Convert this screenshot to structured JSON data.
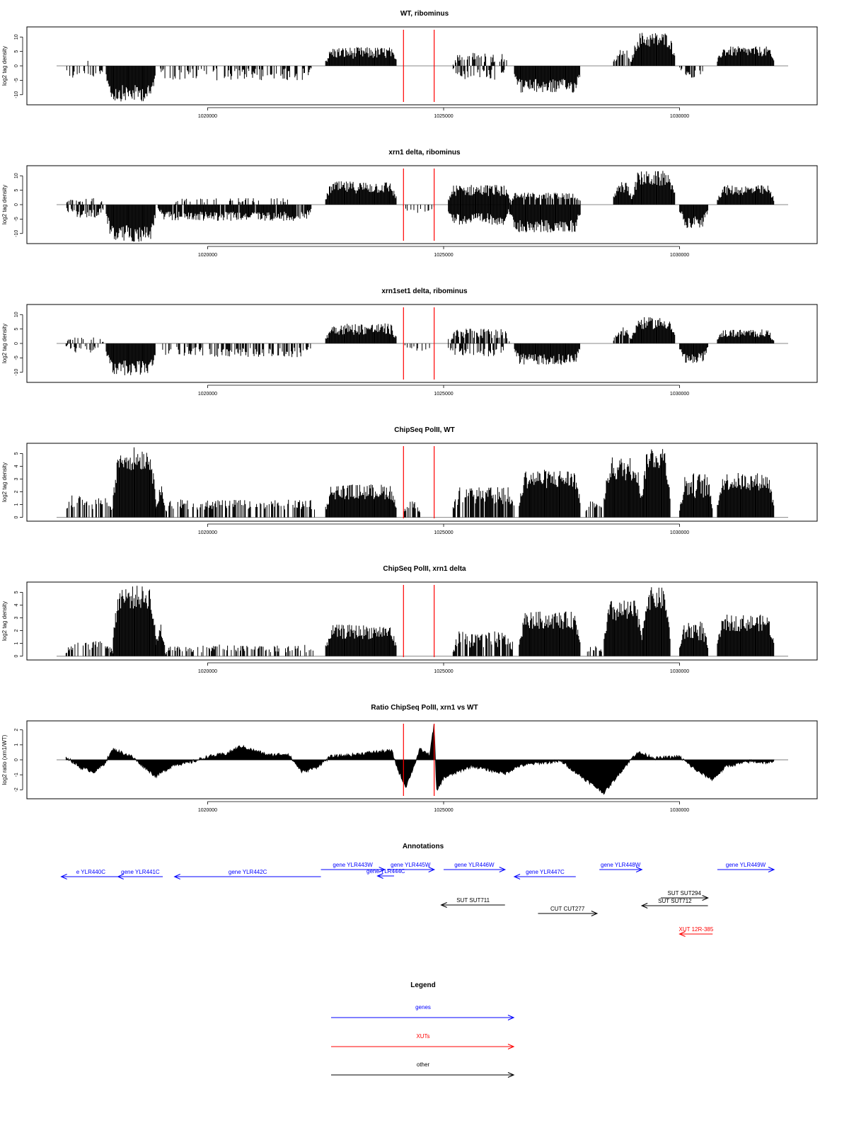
{
  "colors": {
    "genes": "#0000ff",
    "xuts": "#ff0000",
    "other": "#000000",
    "marker": "#ff0000",
    "bars": "#000000"
  },
  "chart_data": [
    {
      "type": "bar",
      "title": "WT, ribominus",
      "ylabel": "log2 tag density",
      "xlim": [
        1016800,
        1032300
      ],
      "ylim": [
        -13.5,
        13.5
      ],
      "yticks": [
        -10,
        -5,
        0,
        5,
        10
      ],
      "xticks": [
        1020000,
        1025000,
        1030000
      ],
      "xtick_labels": [
        "1020000",
        "1025000",
        "1030000"
      ],
      "markers": [
        1024150,
        1024800
      ],
      "segments": [
        {
          "from": 1017000,
          "to": 1017800,
          "level": -3,
          "density": 0.35,
          "noise": 0.6
        },
        {
          "from": 1017400,
          "to": 1017500,
          "level": 3,
          "density": 0.2,
          "noise": 0.4
        },
        {
          "from": 1017850,
          "to": 1018900,
          "level": -9.5,
          "density": 1,
          "noise": 0.3
        },
        {
          "from": 1019000,
          "to": 1022200,
          "level": -3,
          "density": 0.45,
          "noise": 0.7
        },
        {
          "from": 1022500,
          "to": 1024000,
          "level": 4.5,
          "density": 1,
          "noise": 0.45
        },
        {
          "from": 1025200,
          "to": 1026400,
          "level": 3,
          "density": 0.4,
          "noise": 0.6
        },
        {
          "from": 1025200,
          "to": 1026300,
          "level": -3,
          "density": 0.4,
          "noise": 0.6
        },
        {
          "from": 1026500,
          "to": 1027900,
          "level": -7,
          "density": 1,
          "noise": 0.35
        },
        {
          "from": 1028600,
          "to": 1029000,
          "level": 4,
          "density": 0.7,
          "noise": 0.4
        },
        {
          "from": 1029000,
          "to": 1029900,
          "level": 9,
          "density": 1,
          "noise": 0.3
        },
        {
          "from": 1030000,
          "to": 1030500,
          "level": -3,
          "density": 0.5,
          "noise": 0.5
        },
        {
          "from": 1030800,
          "to": 1032000,
          "level": 5,
          "density": 1,
          "noise": 0.35
        }
      ]
    },
    {
      "type": "bar",
      "title": "xrn1 delta, ribominus",
      "ylabel": "log2 tag density",
      "xlim": [
        1016800,
        1032300
      ],
      "ylim": [
        -13.5,
        13.5
      ],
      "yticks": [
        -10,
        -5,
        0,
        5,
        10
      ],
      "xticks": [
        1020000,
        1025000,
        1030000
      ],
      "xtick_labels": [
        "1020000",
        "1025000",
        "1030000"
      ],
      "markers": [
        1024150,
        1024800
      ],
      "segments": [
        {
          "from": 1017000,
          "to": 1017800,
          "level": -3,
          "density": 0.6,
          "noise": 0.5
        },
        {
          "from": 1017000,
          "to": 1017800,
          "level": 1.5,
          "density": 0.3,
          "noise": 0.5
        },
        {
          "from": 1017850,
          "to": 1018900,
          "level": -10,
          "density": 1,
          "noise": 0.3
        },
        {
          "from": 1018950,
          "to": 1022200,
          "level": -4,
          "density": 0.9,
          "noise": 0.4
        },
        {
          "from": 1019300,
          "to": 1021800,
          "level": 1.5,
          "density": 0.2,
          "noise": 0.5
        },
        {
          "from": 1022500,
          "to": 1024000,
          "level": 6,
          "density": 1,
          "noise": 0.35
        },
        {
          "from": 1024150,
          "to": 1024800,
          "level": -2,
          "density": 0.3,
          "noise": 0.5
        },
        {
          "from": 1025100,
          "to": 1026400,
          "level": 5,
          "density": 1,
          "noise": 0.4
        },
        {
          "from": 1025100,
          "to": 1026400,
          "level": -5,
          "density": 1,
          "noise": 0.4
        },
        {
          "from": 1026400,
          "to": 1027900,
          "level": 3,
          "density": 0.8,
          "noise": 0.4
        },
        {
          "from": 1026400,
          "to": 1027900,
          "level": -7.5,
          "density": 1,
          "noise": 0.3
        },
        {
          "from": 1028600,
          "to": 1029000,
          "level": 6,
          "density": 1,
          "noise": 0.35
        },
        {
          "from": 1029000,
          "to": 1029900,
          "level": 9,
          "density": 1,
          "noise": 0.3
        },
        {
          "from": 1030000,
          "to": 1030600,
          "level": -6,
          "density": 1,
          "noise": 0.35
        },
        {
          "from": 1030800,
          "to": 1032000,
          "level": 5,
          "density": 1,
          "noise": 0.35
        }
      ]
    },
    {
      "type": "bar",
      "title": "xrn1set1 delta, ribominus",
      "ylabel": "log2 tag density",
      "xlim": [
        1016800,
        1032300
      ],
      "ylim": [
        -13.5,
        13.5
      ],
      "yticks": [
        -10,
        -5,
        0,
        5,
        10
      ],
      "xticks": [
        1020000,
        1025000,
        1030000
      ],
      "xtick_labels": [
        "1020000",
        "1025000",
        "1030000"
      ],
      "markers": [
        1024150,
        1024800
      ],
      "segments": [
        {
          "from": 1017000,
          "to": 1017800,
          "level": -2,
          "density": 0.35,
          "noise": 0.6
        },
        {
          "from": 1017000,
          "to": 1017800,
          "level": 1.5,
          "density": 0.2,
          "noise": 0.5
        },
        {
          "from": 1017850,
          "to": 1018900,
          "level": -8.5,
          "density": 1,
          "noise": 0.3
        },
        {
          "from": 1019000,
          "to": 1022200,
          "level": -3,
          "density": 0.5,
          "noise": 0.6
        },
        {
          "from": 1022500,
          "to": 1024000,
          "level": 5,
          "density": 1,
          "noise": 0.4
        },
        {
          "from": 1024150,
          "to": 1024800,
          "level": -2,
          "density": 0.3,
          "noise": 0.5
        },
        {
          "from": 1025100,
          "to": 1026400,
          "level": 3.5,
          "density": 0.7,
          "noise": 0.5
        },
        {
          "from": 1025100,
          "to": 1026300,
          "level": -3,
          "density": 0.5,
          "noise": 0.5
        },
        {
          "from": 1026500,
          "to": 1027900,
          "level": -5.5,
          "density": 1,
          "noise": 0.35
        },
        {
          "from": 1028600,
          "to": 1029000,
          "level": 4,
          "density": 0.8,
          "noise": 0.4
        },
        {
          "from": 1029000,
          "to": 1029900,
          "level": 7,
          "density": 1,
          "noise": 0.3
        },
        {
          "from": 1030000,
          "to": 1030600,
          "level": -5,
          "density": 1,
          "noise": 0.35
        },
        {
          "from": 1030800,
          "to": 1032000,
          "level": 3.5,
          "density": 1,
          "noise": 0.4
        }
      ]
    },
    {
      "type": "bar",
      "title": "ChipSeq PolII, WT",
      "ylabel": "log2 tag density",
      "xlim": [
        1016800,
        1032300
      ],
      "ylim": [
        -0.3,
        5.8
      ],
      "yticks": [
        0,
        1,
        2,
        3,
        4,
        5
      ],
      "xticks": [
        1020000,
        1025000,
        1030000
      ],
      "xtick_labels": [
        "1020000",
        "1025000",
        "1030000"
      ],
      "markers": [
        1024150,
        1024800
      ],
      "segments": [
        {
          "from": 1017000,
          "to": 1018000,
          "level": 1.2,
          "density": 0.55,
          "noise": 0.45
        },
        {
          "from": 1018000,
          "to": 1018900,
          "level": 4.6,
          "density": 1,
          "noise": 0.2
        },
        {
          "from": 1018900,
          "to": 1019100,
          "level": 2.5,
          "density": 1,
          "noise": 0.3
        },
        {
          "from": 1019100,
          "to": 1022300,
          "level": 1,
          "density": 0.55,
          "noise": 0.4
        },
        {
          "from": 1022500,
          "to": 1024000,
          "level": 2,
          "density": 1,
          "noise": 0.3
        },
        {
          "from": 1024150,
          "to": 1024500,
          "level": 1,
          "density": 0.4,
          "noise": 0.3
        },
        {
          "from": 1025200,
          "to": 1026500,
          "level": 1.7,
          "density": 0.8,
          "noise": 0.4
        },
        {
          "from": 1026600,
          "to": 1027900,
          "level": 3,
          "density": 1,
          "noise": 0.25
        },
        {
          "from": 1028000,
          "to": 1028400,
          "level": 1,
          "density": 0.5,
          "noise": 0.3
        },
        {
          "from": 1028400,
          "to": 1029200,
          "level": 3.8,
          "density": 1,
          "noise": 0.25
        },
        {
          "from": 1029200,
          "to": 1029800,
          "level": 4.7,
          "density": 1,
          "noise": 0.2
        },
        {
          "from": 1030000,
          "to": 1030700,
          "level": 2.5,
          "density": 1,
          "noise": 0.4
        },
        {
          "from": 1030800,
          "to": 1032000,
          "level": 2.8,
          "density": 1,
          "noise": 0.25
        }
      ]
    },
    {
      "type": "bar",
      "title": "ChipSeq PolII, xrn1 delta",
      "ylabel": "log2 tag density",
      "xlim": [
        1016800,
        1032300
      ],
      "ylim": [
        -0.3,
        5.8
      ],
      "yticks": [
        0,
        1,
        2,
        3,
        4,
        5
      ],
      "xticks": [
        1020000,
        1025000,
        1030000
      ],
      "xtick_labels": [
        "1020000",
        "1025000",
        "1030000"
      ],
      "markers": [
        1024150,
        1024800
      ],
      "segments": [
        {
          "from": 1017000,
          "to": 1018000,
          "level": 0.8,
          "density": 0.5,
          "noise": 0.5
        },
        {
          "from": 1018000,
          "to": 1018900,
          "level": 4.6,
          "density": 1,
          "noise": 0.2
        },
        {
          "from": 1018900,
          "to": 1019100,
          "level": 2.5,
          "density": 1,
          "noise": 0.3
        },
        {
          "from": 1019100,
          "to": 1022300,
          "level": 0.6,
          "density": 0.45,
          "noise": 0.5
        },
        {
          "from": 1022500,
          "to": 1024000,
          "level": 1.9,
          "density": 1,
          "noise": 0.3
        },
        {
          "from": 1025200,
          "to": 1026500,
          "level": 1.3,
          "density": 0.8,
          "noise": 0.5
        },
        {
          "from": 1026600,
          "to": 1027900,
          "level": 2.8,
          "density": 1,
          "noise": 0.25
        },
        {
          "from": 1028000,
          "to": 1028400,
          "level": 0.6,
          "density": 0.4,
          "noise": 0.3
        },
        {
          "from": 1028400,
          "to": 1029200,
          "level": 3.5,
          "density": 1,
          "noise": 0.25
        },
        {
          "from": 1029200,
          "to": 1029800,
          "level": 4.5,
          "density": 1,
          "noise": 0.2
        },
        {
          "from": 1030000,
          "to": 1030600,
          "level": 2,
          "density": 1,
          "noise": 0.4
        },
        {
          "from": 1030800,
          "to": 1032000,
          "level": 2.6,
          "density": 1,
          "noise": 0.25
        }
      ]
    },
    {
      "type": "area",
      "title": "Ratio ChipSeq PolII, xrn1 vs WT",
      "ylabel": "log2 ratio (xrn1/WT)",
      "xlim": [
        1016800,
        1032300
      ],
      "ylim": [
        -2.6,
        2.6
      ],
      "yticks": [
        -2,
        -1,
        0,
        1,
        2
      ],
      "xticks": [
        1020000,
        1025000,
        1030000
      ],
      "xtick_labels": [
        "1020000",
        "1025000",
        "1030000"
      ],
      "markers": [
        1024150,
        1024800
      ],
      "x": [
        1017000,
        1017300,
        1017600,
        1017800,
        1018000,
        1018400,
        1018900,
        1019300,
        1019600,
        1020000,
        1020400,
        1020700,
        1021000,
        1021300,
        1021700,
        1022000,
        1022300,
        1022600,
        1023000,
        1023500,
        1023900,
        1024050,
        1024200,
        1024350,
        1024500,
        1024700,
        1024800,
        1024850,
        1025000,
        1025300,
        1025600,
        1026000,
        1026300,
        1026600,
        1027000,
        1027500,
        1028000,
        1028400,
        1028800,
        1029100,
        1029500,
        1030000,
        1030400,
        1030700,
        1031000,
        1031500,
        1032000
      ],
      "y": [
        0.2,
        -0.5,
        -0.8,
        -0.3,
        0.7,
        0.2,
        -1.1,
        -0.3,
        -0.2,
        0.2,
        0.4,
        0.9,
        0.6,
        0.3,
        0.4,
        -0.8,
        -0.5,
        0.2,
        0.3,
        0.5,
        0.6,
        -0.8,
        -1.8,
        -0.6,
        0.7,
        0.3,
        2.4,
        -2.1,
        -1.2,
        -0.8,
        -0.4,
        -0.7,
        -0.9,
        -0.4,
        -0.2,
        -0.1,
        -1.3,
        -2.2,
        -0.6,
        0.5,
        0.1,
        0.2,
        -0.8,
        -1.3,
        -0.4,
        -0.1,
        -0.2
      ]
    }
  ],
  "annotations": {
    "title": "Annotations",
    "items": [
      {
        "label": "e YLR440C",
        "type": "gene",
        "start": 1016900,
        "end": 1018150,
        "direction": "reverse",
        "row": 0
      },
      {
        "label": "gene YLR441C",
        "type": "gene",
        "start": 1018100,
        "end": 1019050,
        "direction": "reverse",
        "row": 0
      },
      {
        "label": "gene YLR442C",
        "type": "gene",
        "start": 1019300,
        "end": 1022400,
        "direction": "reverse",
        "row": 0
      },
      {
        "label": "gene YLR443W",
        "type": "gene",
        "start": 1022400,
        "end": 1023750,
        "direction": "forward",
        "row": 1
      },
      {
        "label": "gene YLR444C",
        "type": "gene",
        "start": 1023600,
        "end": 1023950,
        "direction": "reverse",
        "row": 2
      },
      {
        "label": "gene YLR445W",
        "type": "gene",
        "start": 1023800,
        "end": 1024800,
        "direction": "forward",
        "row": 1
      },
      {
        "label": "gene YLR446W",
        "type": "gene",
        "start": 1025000,
        "end": 1026300,
        "direction": "forward",
        "row": 1
      },
      {
        "label": "gene YLR447C",
        "type": "gene",
        "start": 1026500,
        "end": 1027800,
        "direction": "reverse",
        "row": 0
      },
      {
        "label": "gene YLR448W",
        "type": "gene",
        "start": 1028300,
        "end": 1029200,
        "direction": "forward",
        "row": 1
      },
      {
        "label": "gene YLR449W",
        "type": "gene",
        "start": 1030800,
        "end": 1032000,
        "direction": "forward",
        "row": 1
      },
      {
        "label": "SUT SUT711",
        "type": "other",
        "start": 1024950,
        "end": 1026300,
        "direction": "reverse",
        "row": 3
      },
      {
        "label": "CUT CUT277",
        "type": "other",
        "start": 1027000,
        "end": 1028250,
        "direction": "forward",
        "row": 4
      },
      {
        "label": "SUT SUT294",
        "type": "other",
        "start": 1029600,
        "end": 1030600,
        "direction": "forward",
        "row": 5
      },
      {
        "label": "SUT SUT712",
        "type": "other",
        "start": 1029200,
        "end": 1030600,
        "direction": "reverse",
        "row": 6
      },
      {
        "label": "XUT 12R-385",
        "type": "xut",
        "start": 1030000,
        "end": 1030700,
        "direction": "reverse",
        "row": 7
      }
    ]
  },
  "legend": {
    "title": "Legend",
    "items": [
      {
        "label": "genes",
        "type": "gene"
      },
      {
        "label": "XUTs",
        "type": "xut"
      },
      {
        "label": "other",
        "type": "other"
      }
    ]
  }
}
